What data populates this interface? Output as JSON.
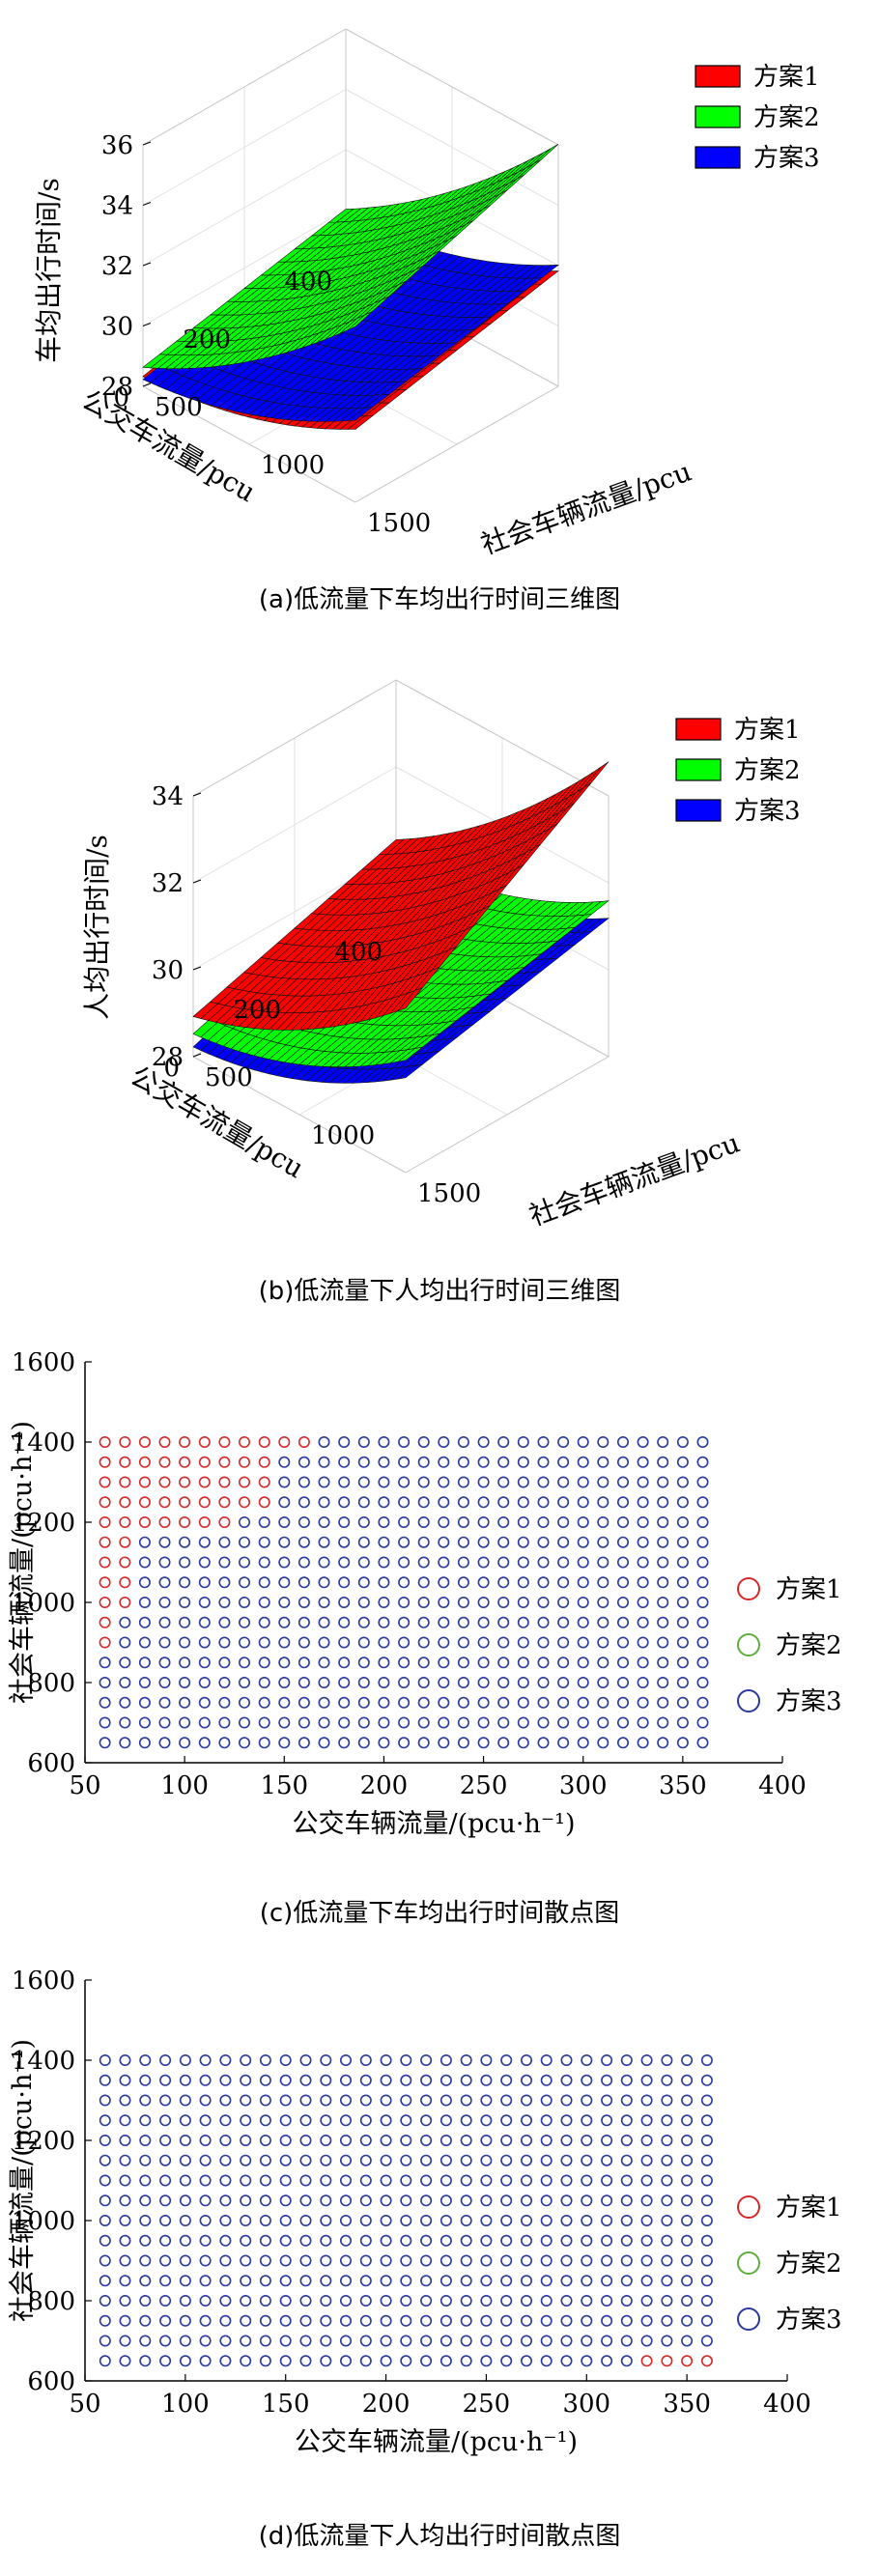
{
  "chart_data": [
    {
      "type": "surface3d",
      "caption": "(a)低流量下车均出行时间三维图",
      "xlabel": "社会车辆流量/pcu",
      "ylabel": "公交车流量/pcu",
      "zlabel": "车均出行时间/s",
      "x_ticks": [
        "500",
        "1000",
        "1500"
      ],
      "y_ticks": [
        "0",
        "200",
        "400"
      ],
      "z_ticks": [
        "28",
        "30",
        "32",
        "34",
        "36"
      ],
      "xlim": [
        500,
        1500
      ],
      "ylim": [
        0,
        400
      ],
      "zlim": [
        28,
        36
      ],
      "legend": [
        "方案1",
        "方案2",
        "方案3"
      ],
      "colors": [
        "#ff0000",
        "#00ff00",
        "#0000ff"
      ],
      "series": [
        {
          "name": "方案1",
          "corners_z": {
            "x500_y0": 28.3,
            "x1500_y0": 30.2,
            "x500_y400": 29.9,
            "x1500_y400": 31.6
          }
        },
        {
          "name": "方案2",
          "corners_z": {
            "x500_y0": 28.6,
            "x1500_y0": 33.6,
            "x500_y400": 30.0,
            "x1500_y400": 35.8
          }
        },
        {
          "name": "方案3",
          "corners_z": {
            "x500_y0": 28.2,
            "x1500_y0": 30.5,
            "x500_y400": 29.8,
            "x1500_y400": 31.8
          }
        }
      ]
    },
    {
      "type": "surface3d",
      "caption": "(b)低流量下人均出行时间三维图",
      "xlabel": "社会车辆流量/pcu",
      "ylabel": "公交车流量/pcu",
      "zlabel": "人均出行时间/s",
      "x_ticks": [
        "500",
        "1000",
        "1500"
      ],
      "y_ticks": [
        "0",
        "200",
        "400"
      ],
      "z_ticks": [
        "28",
        "30",
        "32",
        "34"
      ],
      "xlim": [
        500,
        1500
      ],
      "ylim": [
        0,
        400
      ],
      "zlim": [
        28,
        34
      ],
      "legend": [
        "方案1",
        "方案2",
        "方案3"
      ],
      "colors": [
        "#ff0000",
        "#00ff00",
        "#0000ff"
      ],
      "series": [
        {
          "name": "方案1",
          "corners_z": {
            "x500_y0": 28.9,
            "x1500_y0": 31.6,
            "x500_y400": 30.3,
            "x1500_y400": 34.6
          }
        },
        {
          "name": "方案2",
          "corners_z": {
            "x500_y0": 28.5,
            "x1500_y0": 30.4,
            "x500_y400": 30.0,
            "x1500_y400": 31.4
          }
        },
        {
          "name": "方案3",
          "corners_z": {
            "x500_y0": 28.2,
            "x1500_y0": 30.0,
            "x500_y400": 29.8,
            "x1500_y400": 31.0
          }
        }
      ]
    },
    {
      "type": "scatter",
      "caption": "(c)低流量下车均出行时间散点图",
      "xlabel": "公交车辆流量/(pcu·h⁻¹)",
      "ylabel": "社会车辆流量/(pcu·h⁻¹)",
      "xlim": [
        50,
        400
      ],
      "ylim": [
        600,
        1600
      ],
      "x_ticks": [
        50,
        100,
        150,
        200,
        250,
        300,
        350,
        400
      ],
      "y_ticks": [
        600,
        800,
        1000,
        1200,
        1400,
        1600
      ],
      "grid_x": {
        "start": 60,
        "step": 10,
        "count": 31
      },
      "grid_y": {
        "start": 650,
        "step": 50,
        "count": 16
      },
      "legend": [
        "方案1",
        "方案2",
        "方案3"
      ],
      "colors": [
        "#d42a2a",
        "#5fae3c",
        "#2a3a9e"
      ],
      "scheme1_max_x_by_y": {
        "650": 0,
        "700": 0,
        "750": 0,
        "800": 0,
        "850": 0,
        "900": 60,
        "950": 60,
        "1000": 70,
        "1050": 70,
        "1100": 70,
        "1150": 70,
        "1200": 120,
        "1250": 140,
        "1300": 140,
        "1350": 140,
        "1400": 160
      }
    },
    {
      "type": "scatter",
      "caption": "(d)低流量下人均出行时间散点图",
      "xlabel": "公交车辆流量/(pcu·h⁻¹)",
      "ylabel": "社会车辆流量/(pcu·h⁻¹)",
      "xlim": [
        50,
        400
      ],
      "ylim": [
        600,
        1600
      ],
      "x_ticks": [
        50,
        100,
        150,
        200,
        250,
        300,
        350,
        400
      ],
      "y_ticks": [
        600,
        800,
        1000,
        1200,
        1400,
        1600
      ],
      "grid_x": {
        "start": 60,
        "step": 10,
        "count": 31
      },
      "grid_y": {
        "start": 650,
        "step": 50,
        "count": 16
      },
      "legend": [
        "方案1",
        "方案2",
        "方案3"
      ],
      "colors": [
        "#d42a2a",
        "#5fae3c",
        "#2a3a9e"
      ],
      "scheme1_points": [
        [
          330,
          650
        ],
        [
          340,
          650
        ],
        [
          350,
          650
        ],
        [
          360,
          650
        ]
      ]
    }
  ]
}
